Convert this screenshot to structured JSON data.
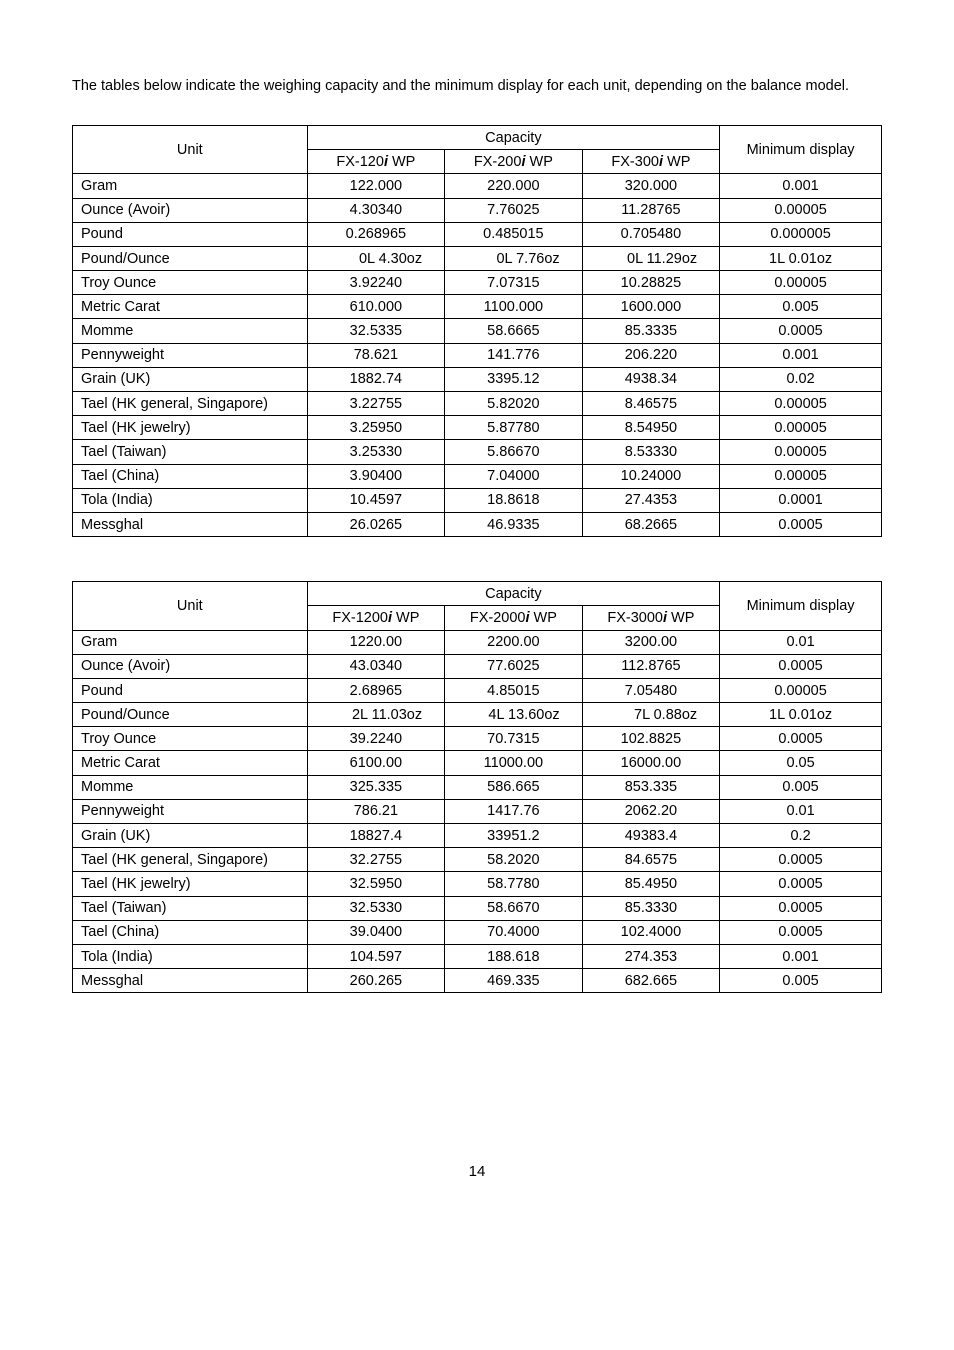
{
  "intro_text": "The tables below indicate the weighing capacity and the minimum display for each unit, depending on the balance model.",
  "header_unit": "Unit",
  "header_capacity": "Capacity",
  "header_min": "Minimum display",
  "models_small": [
    "FX-120",
    "FX-200",
    "FX-300"
  ],
  "models_large": [
    "FX-1200",
    "FX-2000",
    "FX-3000"
  ],
  "model_suffix_i": "i",
  "model_suffix_wp": " WP",
  "units": [
    "Gram",
    "Ounce (Avoir)",
    "Pound",
    "Pound/Ounce",
    "Troy Ounce",
    "Metric Carat",
    "Momme",
    "Pennyweight",
    "Grain (UK)",
    "Tael (HK general, Singapore)",
    "Tael (HK jewelry)",
    "Tael (Taiwan)",
    "Tael (China)",
    "Tola (India)",
    "Messghal"
  ],
  "table1": {
    "rows": [
      [
        "122.000",
        "220.000",
        "320.000",
        "0.001"
      ],
      [
        "4.30340",
        "7.76025",
        "11.28765",
        "0.00005"
      ],
      [
        "0.268965",
        "0.485015",
        "0.705480",
        "0.000005"
      ],
      [
        "0L 4.30oz",
        "0L 7.76oz",
        "0L 11.29oz",
        "1L 0.01oz"
      ],
      [
        "3.92240",
        "7.07315",
        "10.28825",
        "0.00005"
      ],
      [
        "610.000",
        "1100.000",
        "1600.000",
        "0.005"
      ],
      [
        "32.5335",
        "58.6665",
        "85.3335",
        "0.0005"
      ],
      [
        "78.621",
        "141.776",
        "206.220",
        "0.001"
      ],
      [
        "1882.74",
        "3395.12",
        "4938.34",
        "0.02"
      ],
      [
        "3.22755",
        "5.82020",
        "8.46575",
        "0.00005"
      ],
      [
        "3.25950",
        "5.87780",
        "8.54950",
        "0.00005"
      ],
      [
        "3.25330",
        "5.86670",
        "8.53330",
        "0.00005"
      ],
      [
        "3.90400",
        "7.04000",
        "10.24000",
        "0.00005"
      ],
      [
        "10.4597",
        "18.8618",
        "27.4353",
        "0.0001"
      ],
      [
        "26.0265",
        "46.9335",
        "68.2665",
        "0.0005"
      ]
    ],
    "pad_left": [
      false,
      false,
      false,
      true,
      false,
      false,
      false,
      false,
      false,
      false,
      false,
      false,
      false,
      false,
      false
    ]
  },
  "table2": {
    "rows": [
      [
        "1220.00",
        "2200.00",
        "3200.00",
        "0.01"
      ],
      [
        "43.0340",
        "77.6025",
        "112.8765",
        "0.0005"
      ],
      [
        "2.68965",
        "4.85015",
        "7.05480",
        "0.00005"
      ],
      [
        "2L 11.03oz",
        "4L 13.60oz",
        "7L 0.88oz",
        "1L 0.01oz"
      ],
      [
        "39.2240",
        "70.7315",
        "102.8825",
        "0.0005"
      ],
      [
        "6100.00",
        "11000.00",
        "16000.00",
        "0.05"
      ],
      [
        "325.335",
        "586.665",
        "853.335",
        "0.005"
      ],
      [
        "786.21",
        "1417.76",
        "2062.20",
        "0.01"
      ],
      [
        "18827.4",
        "33951.2",
        "49383.4",
        "0.2"
      ],
      [
        "32.2755",
        "58.2020",
        "84.6575",
        "0.0005"
      ],
      [
        "32.5950",
        "58.7780",
        "85.4950",
        "0.0005"
      ],
      [
        "32.5330",
        "58.6670",
        "85.3330",
        "0.0005"
      ],
      [
        "39.0400",
        "70.4000",
        "102.4000",
        "0.0005"
      ],
      [
        "104.597",
        "188.618",
        "274.353",
        "0.001"
      ],
      [
        "260.265",
        "469.335",
        "682.665",
        "0.005"
      ]
    ],
    "pad_left": [
      false,
      false,
      false,
      true,
      false,
      false,
      false,
      false,
      false,
      false,
      false,
      false,
      false,
      false,
      false
    ]
  },
  "page_number": "14"
}
